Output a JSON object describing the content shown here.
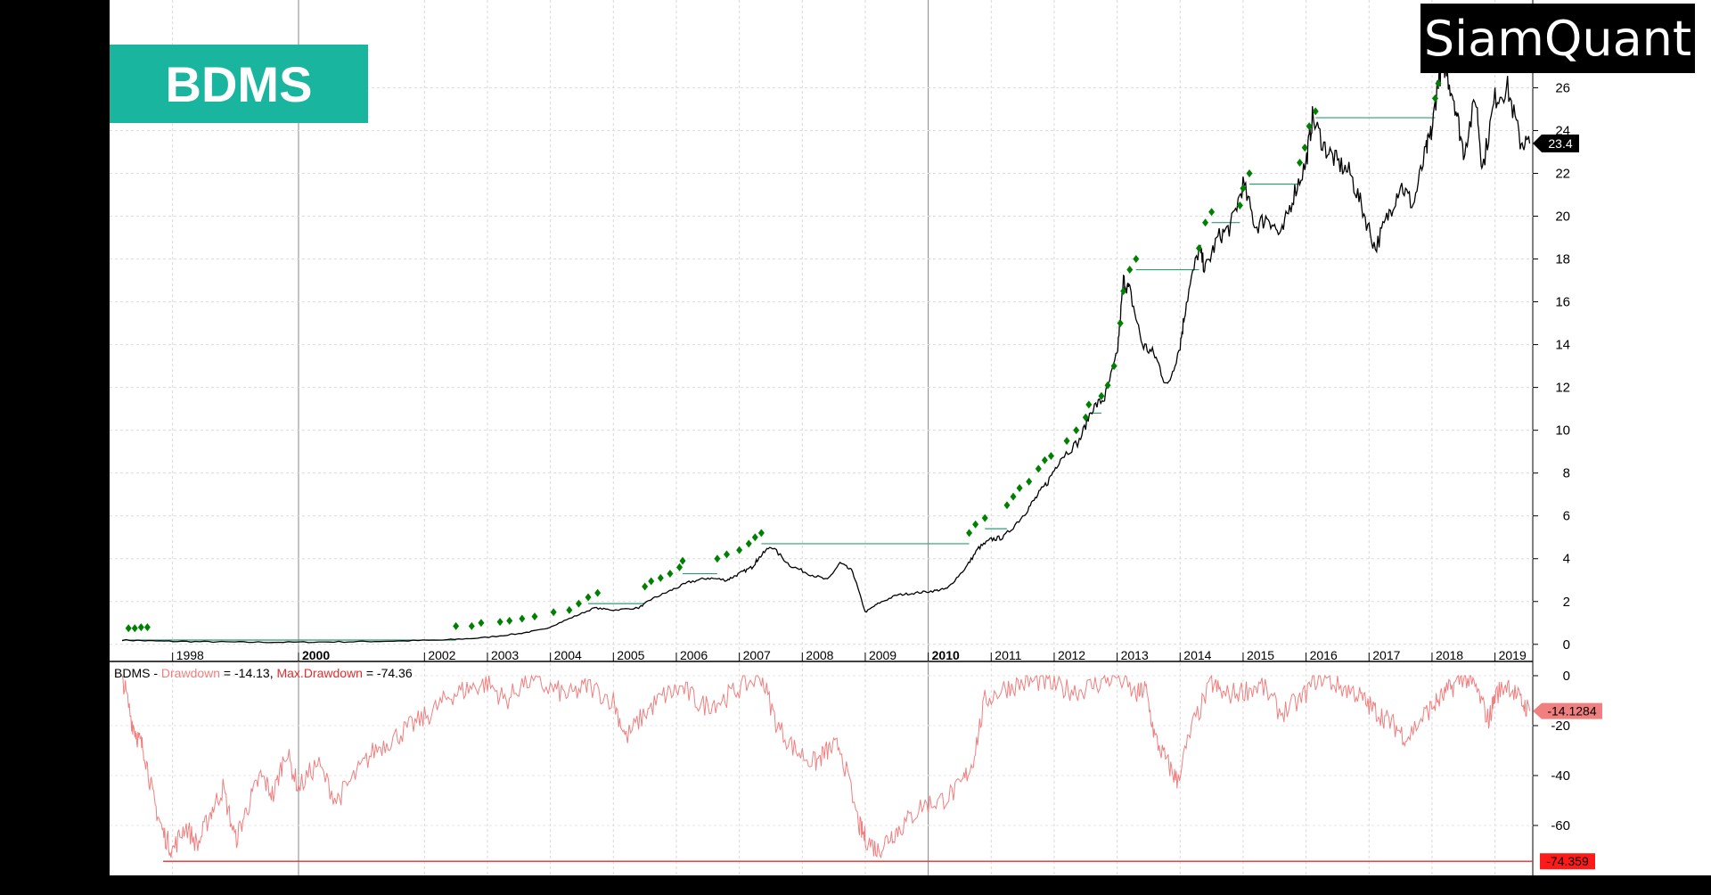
{
  "ticker": "BDMS",
  "brand": "SiamQuant",
  "colors": {
    "background": "#ffffff",
    "frame": "#000000",
    "price_line": "#000000",
    "new_high_marker": "#008000",
    "high_level_line": "#2e9e72",
    "drawdown_line": "#f07f7f",
    "max_drawdown_line": "#e03030",
    "badge_bg": "#1ab59f"
  },
  "indicator_legend": {
    "symbol": "BDMS",
    "sep1": " - ",
    "drawdown_label": "Drawdown",
    "drawdown_text": " = -14.13, ",
    "max_label": "Max.Drawdown",
    "max_text": " = -74.36"
  },
  "chart_data": [
    {
      "type": "line",
      "panel": "price",
      "x_ticks": [
        "1998",
        "2000",
        "2002",
        "2003",
        "2004",
        "2005",
        "2006",
        "2007",
        "2008",
        "2009",
        "2010",
        "2011",
        "2012",
        "2013",
        "2014",
        "2015",
        "2016",
        "2017",
        "2018",
        "2019"
      ],
      "bold_ticks": [
        "2000",
        "2010"
      ],
      "y_ticks": [
        "0",
        "2",
        "4",
        "6",
        "8",
        "10",
        "12",
        "14",
        "16",
        "18",
        "20",
        "22",
        "24",
        "26"
      ],
      "ylim": [
        -0.8,
        27.6
      ],
      "last_value_label": "23.4",
      "series": [
        {
          "name": "BDMS",
          "x": [
            1997.2,
            1997.8,
            1998.5,
            1999.2,
            2000.0,
            2000.8,
            2001.5,
            2002.3,
            2002.9,
            2003.5,
            2003.9,
            2004.3,
            2004.7,
            2005.0,
            2005.4,
            2005.6,
            2005.9,
            2006.2,
            2006.5,
            2006.8,
            2007.0,
            2007.2,
            2007.3,
            2007.5,
            2007.8,
            2008.1,
            2008.4,
            2008.6,
            2008.8,
            2009.0,
            2009.2,
            2009.5,
            2009.8,
            2010.1,
            2010.3,
            2010.6,
            2010.8,
            2011.0,
            2011.2,
            2011.5,
            2011.7,
            2011.9,
            2012.1,
            2012.4,
            2012.6,
            2012.8,
            2013.0,
            2013.1,
            2013.2,
            2013.4,
            2013.6,
            2013.8,
            2014.0,
            2014.1,
            2014.3,
            2014.4,
            2014.6,
            2014.8,
            2015.0,
            2015.2,
            2015.4,
            2015.6,
            2015.8,
            2016.0,
            2016.1,
            2016.3,
            2016.5,
            2016.7,
            2016.9,
            2017.1,
            2017.3,
            2017.5,
            2017.7,
            2017.9,
            2018.0,
            2018.1,
            2018.2,
            2018.35,
            2018.5,
            2018.7,
            2018.8,
            2019.0,
            2019.2,
            2019.4,
            2019.55
          ],
          "y": [
            0.2,
            0.15,
            0.12,
            0.1,
            0.1,
            0.12,
            0.15,
            0.2,
            0.3,
            0.5,
            0.7,
            1.2,
            1.7,
            1.6,
            1.7,
            2.1,
            2.5,
            2.9,
            3.1,
            3.0,
            3.3,
            3.6,
            4.0,
            4.6,
            3.7,
            3.3,
            3.0,
            3.8,
            3.4,
            1.5,
            1.9,
            2.3,
            2.4,
            2.5,
            2.6,
            3.6,
            4.5,
            4.9,
            5.0,
            6.0,
            6.8,
            7.6,
            8.7,
            9.5,
            11.0,
            11.5,
            13.5,
            17.0,
            16.5,
            14.0,
            13.5,
            12.0,
            14.0,
            16.0,
            18.5,
            17.5,
            19.0,
            19.5,
            21.5,
            19.5,
            20.0,
            19.0,
            21.0,
            22.5,
            24.6,
            23.2,
            22.5,
            22.0,
            20.3,
            18.5,
            20.0,
            21.5,
            20.5,
            23.0,
            24.0,
            26.5,
            27.0,
            25.5,
            23.0,
            25.5,
            22.2,
            25.5,
            26.0,
            23.5,
            23.4
          ]
        }
      ],
      "new_high_markers": [
        {
          "x": 1997.3,
          "y": 0.75
        },
        {
          "x": 1997.4,
          "y": 0.75
        },
        {
          "x": 1997.5,
          "y": 0.8
        },
        {
          "x": 1997.6,
          "y": 0.8
        },
        {
          "x": 2002.5,
          "y": 0.85
        },
        {
          "x": 2002.75,
          "y": 0.85
        },
        {
          "x": 2002.9,
          "y": 1.0
        },
        {
          "x": 2003.2,
          "y": 1.05
        },
        {
          "x": 2003.35,
          "y": 1.1
        },
        {
          "x": 2003.55,
          "y": 1.2
        },
        {
          "x": 2003.75,
          "y": 1.3
        },
        {
          "x": 2004.05,
          "y": 1.5
        },
        {
          "x": 2004.3,
          "y": 1.6
        },
        {
          "x": 2004.45,
          "y": 1.9
        },
        {
          "x": 2004.6,
          "y": 2.2
        },
        {
          "x": 2004.75,
          "y": 2.4
        },
        {
          "x": 2005.5,
          "y": 2.7
        },
        {
          "x": 2005.6,
          "y": 2.95
        },
        {
          "x": 2005.75,
          "y": 3.1
        },
        {
          "x": 2005.9,
          "y": 3.3
        },
        {
          "x": 2006.05,
          "y": 3.6
        },
        {
          "x": 2006.1,
          "y": 3.9
        },
        {
          "x": 2006.65,
          "y": 4.0
        },
        {
          "x": 2006.8,
          "y": 4.2
        },
        {
          "x": 2007.0,
          "y": 4.4
        },
        {
          "x": 2007.15,
          "y": 4.7
        },
        {
          "x": 2007.25,
          "y": 5.0
        },
        {
          "x": 2007.35,
          "y": 5.2
        },
        {
          "x": 2010.65,
          "y": 5.2
        },
        {
          "x": 2010.75,
          "y": 5.6
        },
        {
          "x": 2010.9,
          "y": 5.9
        },
        {
          "x": 2011.25,
          "y": 6.5
        },
        {
          "x": 2011.35,
          "y": 6.9
        },
        {
          "x": 2011.45,
          "y": 7.3
        },
        {
          "x": 2011.6,
          "y": 7.6
        },
        {
          "x": 2011.75,
          "y": 8.2
        },
        {
          "x": 2011.85,
          "y": 8.6
        },
        {
          "x": 2011.95,
          "y": 8.8
        },
        {
          "x": 2012.2,
          "y": 9.5
        },
        {
          "x": 2012.35,
          "y": 10.0
        },
        {
          "x": 2012.5,
          "y": 10.6
        },
        {
          "x": 2012.55,
          "y": 11.2
        },
        {
          "x": 2012.75,
          "y": 11.6
        },
        {
          "x": 2012.85,
          "y": 12.1
        },
        {
          "x": 2012.95,
          "y": 13.0
        },
        {
          "x": 2013.05,
          "y": 15.0
        },
        {
          "x": 2013.1,
          "y": 16.5
        },
        {
          "x": 2013.2,
          "y": 17.5
        },
        {
          "x": 2013.3,
          "y": 18.0
        },
        {
          "x": 2014.3,
          "y": 18.5
        },
        {
          "x": 2014.4,
          "y": 19.7
        },
        {
          "x": 2014.5,
          "y": 20.2
        },
        {
          "x": 2014.95,
          "y": 20.5
        },
        {
          "x": 2015.0,
          "y": 21.3
        },
        {
          "x": 2015.1,
          "y": 22.0
        },
        {
          "x": 2015.9,
          "y": 22.5
        },
        {
          "x": 2015.98,
          "y": 23.2
        },
        {
          "x": 2016.05,
          "y": 24.2
        },
        {
          "x": 2016.15,
          "y": 24.9
        },
        {
          "x": 2018.05,
          "y": 25.5
        },
        {
          "x": 2018.1,
          "y": 26.2
        }
      ],
      "high_levels": [
        {
          "x1": 1997.2,
          "x2": 2002.5,
          "y": 0.2
        },
        {
          "x1": 2004.6,
          "x2": 2005.5,
          "y": 1.9
        },
        {
          "x1": 2006.1,
          "x2": 2006.65,
          "y": 3.3
        },
        {
          "x1": 2007.35,
          "x2": 2010.65,
          "y": 4.7
        },
        {
          "x1": 2010.9,
          "x2": 2011.25,
          "y": 5.4
        },
        {
          "x1": 2012.55,
          "x2": 2012.75,
          "y": 10.8
        },
        {
          "x1": 2013.3,
          "x2": 2014.3,
          "y": 17.5
        },
        {
          "x1": 2014.5,
          "x2": 2014.95,
          "y": 19.7
        },
        {
          "x1": 2015.1,
          "x2": 2015.9,
          "y": 21.5
        },
        {
          "x1": 2016.15,
          "x2": 2018.05,
          "y": 24.6
        }
      ]
    },
    {
      "type": "line",
      "panel": "drawdown",
      "y_ticks": [
        "0",
        "-20",
        "-40",
        "-60"
      ],
      "ylim": [
        -75,
        0
      ],
      "last_value_label": "-14.1284",
      "max_value_label": "-74.359",
      "max_drawdown_value": -74.36,
      "series": [
        {
          "name": "Drawdown",
          "x": [
            1997.2,
            1997.35,
            1997.45,
            1997.55,
            1997.7,
            1997.85,
            1998.0,
            1998.2,
            1998.4,
            1998.6,
            1998.8,
            1999.0,
            1999.2,
            1999.4,
            1999.6,
            1999.8,
            2000.0,
            2000.3,
            2000.6,
            2000.9,
            2001.2,
            2001.5,
            2001.8,
            2002.1,
            2002.4,
            2002.7,
            2003.0,
            2003.3,
            2003.6,
            2004.0,
            2004.3,
            2004.6,
            2005.0,
            2005.2,
            2005.5,
            2005.8,
            2006.1,
            2006.4,
            2006.7,
            2007.0,
            2007.35,
            2007.6,
            2007.9,
            2008.2,
            2008.4,
            2008.6,
            2008.9,
            2009.0,
            2009.2,
            2009.4,
            2009.6,
            2009.9,
            2010.2,
            2010.5,
            2010.7,
            2010.9,
            2011.2,
            2011.5,
            2011.8,
            2012.1,
            2012.4,
            2012.7,
            2013.0,
            2013.3,
            2013.45,
            2013.6,
            2013.8,
            2013.95,
            2014.2,
            2014.5,
            2014.7,
            2015.0,
            2015.3,
            2015.6,
            2015.9,
            2016.2,
            2016.5,
            2016.8,
            2017.0,
            2017.2,
            2017.4,
            2017.6,
            2017.9,
            2018.1,
            2018.3,
            2018.5,
            2018.7,
            2018.9,
            2019.0,
            2019.2,
            2019.4,
            2019.55
          ],
          "y": [
            0,
            -18,
            -25,
            -30,
            -50,
            -63,
            -70,
            -60,
            -68,
            -55,
            -45,
            -66,
            -52,
            -40,
            -48,
            -30,
            -45,
            -35,
            -50,
            -40,
            -30,
            -25,
            -20,
            -15,
            -8,
            -5,
            -3,
            -10,
            -2,
            -5,
            -8,
            -4,
            -10,
            -25,
            -15,
            -8,
            -5,
            -12,
            -10,
            -5,
            0,
            -20,
            -30,
            -35,
            -30,
            -28,
            -60,
            -65,
            -70,
            -64,
            -60,
            -52,
            -50,
            -45,
            -35,
            -10,
            -5,
            -3,
            -2,
            -5,
            -6,
            -3,
            0,
            -8,
            -5,
            -25,
            -35,
            -42,
            -20,
            -3,
            -8,
            -6,
            -4,
            -15,
            -10,
            0,
            -4,
            -7,
            -12,
            -16,
            -20,
            -25,
            -15,
            -10,
            -5,
            0,
            -5,
            -18,
            -8,
            -3,
            -10,
            -14.13
          ]
        }
      ]
    }
  ]
}
